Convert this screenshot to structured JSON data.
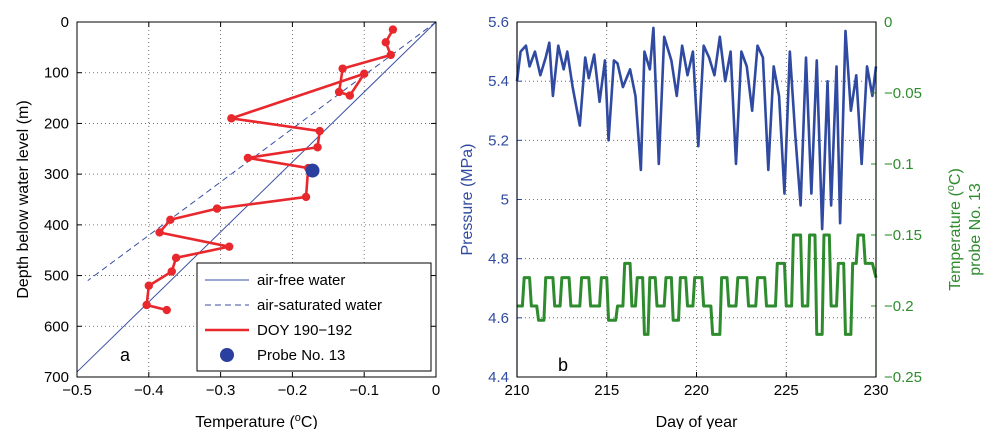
{
  "chart_data": [
    {
      "type": "line",
      "panel_label": "a",
      "xlabel": "Temperature (",
      "xlabel_sup": "o",
      "xlabel_unit": "C)",
      "ylabel": "Depth below water level (m)",
      "xlim": [
        -0.5,
        0
      ],
      "ylim": [
        0,
        700
      ],
      "y_reversed": true,
      "grid": true,
      "xticks": [
        -0.5,
        -0.4,
        -0.3,
        -0.2,
        -0.1,
        0
      ],
      "xtick_labels": [
        "−0.5",
        "−0.4",
        "−0.3",
        "−0.2",
        "−0.1",
        "0"
      ],
      "yticks": [
        0,
        100,
        200,
        300,
        400,
        500,
        600,
        700
      ],
      "ytick_labels": [
        "0",
        "100",
        "200",
        "300",
        "400",
        "500",
        "600",
        "700"
      ],
      "legend_position": "bottom-right",
      "series": [
        {
          "name": "air-free water",
          "kind": "line",
          "style": "solid",
          "color": "#3a4fa3",
          "x": [
            0,
            -0.5
          ],
          "y": [
            0,
            690
          ]
        },
        {
          "name": "air-saturated water",
          "kind": "line",
          "style": "dashed",
          "color": "#3a4fa3",
          "x": [
            0,
            -0.485
          ],
          "y": [
            0,
            510
          ]
        },
        {
          "name": "DOY 190−192",
          "kind": "line-markers",
          "color": "#e8282d",
          "x": [
            -0.06,
            -0.07,
            -0.063,
            -0.13,
            -0.135,
            -0.12,
            -0.1,
            -0.285,
            -0.162,
            -0.165,
            -0.262,
            -0.178,
            -0.181,
            -0.305,
            -0.37,
            -0.385,
            -0.288,
            -0.362,
            -0.368,
            -0.4,
            -0.403,
            -0.375
          ],
          "y": [
            15,
            40,
            65,
            92,
            138,
            145,
            102,
            190,
            215,
            247,
            268,
            288,
            345,
            368,
            390,
            415,
            443,
            465,
            492,
            520,
            558,
            568
          ]
        },
        {
          "name": "Probe No. 13",
          "kind": "marker",
          "color": "#2b3f9e",
          "x": [
            -0.172
          ],
          "y": [
            293
          ]
        }
      ]
    },
    {
      "type": "line",
      "panel_label": "b",
      "xlabel": "Day of year",
      "ylabel": "Pressure (MPa)",
      "ylabel_right": "Temperature (",
      "ylabel_right_sup": "o",
      "ylabel_right_unit": "C)",
      "ylabel_right_line2": "probe No. 13",
      "xlim": [
        210,
        230
      ],
      "ylim": [
        4.4,
        5.6
      ],
      "ylim_right": [
        -0.25,
        0
      ],
      "grid": true,
      "xticks": [
        210,
        215,
        220,
        225,
        230
      ],
      "xtick_labels": [
        "210",
        "215",
        "220",
        "225",
        "230"
      ],
      "yticks": [
        4.4,
        4.6,
        4.8,
        5,
        5.2,
        5.4,
        5.6
      ],
      "ytick_labels": [
        "4.4",
        "4.6",
        "4.8",
        "5",
        "5.2",
        "5.4",
        "5.6"
      ],
      "yticks_right": [
        0,
        -0.05,
        -0.1,
        -0.15,
        -0.2,
        -0.25
      ],
      "ytick_labels_right": [
        "0",
        "−0.05",
        "−0.1",
        "−0.15",
        "−0.2",
        "−0.25"
      ],
      "series": [
        {
          "name": "Pressure",
          "axis": "left",
          "color": "#2f4aa0",
          "x": [
            210,
            210.2,
            210.5,
            210.7,
            211,
            211.3,
            211.6,
            211.8,
            212,
            212.3,
            212.6,
            212.8,
            213.1,
            213.5,
            213.8,
            214,
            214.3,
            214.6,
            214.9,
            215.1,
            215.4,
            215.6,
            215.9,
            216.3,
            216.6,
            216.9,
            217.1,
            217.4,
            217.6,
            217.9,
            218.2,
            218.6,
            218.9,
            219.2,
            219.5,
            219.8,
            220.1,
            220.4,
            220.7,
            221,
            221.3,
            221.6,
            221.9,
            222.2,
            222.5,
            222.8,
            223.1,
            223.4,
            223.7,
            224,
            224.3,
            224.6,
            224.9,
            225.2,
            225.5,
            225.8,
            226.1,
            226.4,
            226.7,
            227,
            227.3,
            227.5,
            227.8,
            228,
            228.3,
            228.6,
            228.9,
            229.2,
            229.5,
            229.8,
            230
          ],
          "y": [
            5.4,
            5.5,
            5.52,
            5.45,
            5.5,
            5.42,
            5.48,
            5.53,
            5.35,
            5.52,
            5.44,
            5.5,
            5.38,
            5.25,
            5.48,
            5.41,
            5.49,
            5.33,
            5.47,
            5.2,
            5.47,
            5.46,
            5.38,
            5.44,
            5.35,
            5.1,
            5.5,
            5.44,
            5.58,
            5.12,
            5.55,
            5.47,
            5.35,
            5.52,
            5.42,
            5.5,
            5.18,
            5.52,
            5.48,
            5.42,
            5.55,
            5.4,
            5.5,
            5.12,
            5.5,
            5.45,
            5.3,
            5.52,
            5.48,
            5.1,
            5.45,
            5.35,
            5.02,
            5.5,
            5.22,
            4.98,
            5.48,
            5.02,
            5.47,
            4.9,
            5.4,
            4.98,
            5.45,
            4.92,
            5.57,
            5.3,
            5.42,
            5.12,
            5.45,
            5.35,
            5.45
          ]
        },
        {
          "name": "Temperature probe No. 13",
          "axis": "right",
          "color": "#2e8b2e",
          "x": [
            210,
            210.3,
            210.4,
            210.7,
            210.8,
            211.1,
            211.2,
            211.5,
            211.6,
            212,
            212.1,
            212.4,
            212.5,
            212.9,
            213,
            213.5,
            213.6,
            214,
            214.1,
            214.6,
            214.7,
            215,
            215.1,
            215.5,
            215.6,
            215.9,
            216,
            216.3,
            216.4,
            216.6,
            216.7,
            217,
            217.1,
            217.3,
            217.4,
            217.7,
            217.8,
            218.2,
            218.3,
            218.6,
            218.7,
            219,
            219.1,
            219.4,
            219.5,
            219.8,
            219.9,
            220.3,
            220.4,
            220.8,
            220.9,
            221.3,
            221.4,
            221.7,
            221.8,
            222.2,
            222.3,
            222.8,
            222.9,
            223.3,
            223.4,
            223.8,
            223.9,
            224.4,
            224.5,
            224.9,
            225,
            225.3,
            225.4,
            225.8,
            225.9,
            226.2,
            226.3,
            226.6,
            226.7,
            227,
            227.1,
            227.4,
            227.5,
            227.8,
            227.9,
            228.2,
            228.3,
            228.6,
            228.7,
            228.9,
            229,
            229.3,
            229.4,
            229.8,
            230
          ],
          "y": [
            -0.2,
            -0.2,
            -0.18,
            -0.18,
            -0.2,
            -0.2,
            -0.21,
            -0.21,
            -0.18,
            -0.18,
            -0.2,
            -0.2,
            -0.18,
            -0.18,
            -0.2,
            -0.2,
            -0.18,
            -0.18,
            -0.2,
            -0.2,
            -0.18,
            -0.18,
            -0.21,
            -0.21,
            -0.2,
            -0.2,
            -0.17,
            -0.17,
            -0.2,
            -0.2,
            -0.18,
            -0.18,
            -0.22,
            -0.22,
            -0.18,
            -0.18,
            -0.2,
            -0.2,
            -0.18,
            -0.18,
            -0.21,
            -0.21,
            -0.18,
            -0.18,
            -0.2,
            -0.2,
            -0.18,
            -0.18,
            -0.2,
            -0.2,
            -0.22,
            -0.22,
            -0.18,
            -0.18,
            -0.2,
            -0.2,
            -0.18,
            -0.18,
            -0.2,
            -0.2,
            -0.18,
            -0.18,
            -0.2,
            -0.2,
            -0.17,
            -0.17,
            -0.2,
            -0.2,
            -0.15,
            -0.15,
            -0.2,
            -0.2,
            -0.15,
            -0.15,
            -0.22,
            -0.22,
            -0.15,
            -0.15,
            -0.2,
            -0.2,
            -0.17,
            -0.17,
            -0.22,
            -0.22,
            -0.17,
            -0.17,
            -0.15,
            -0.15,
            -0.17,
            -0.17,
            -0.18
          ]
        }
      ]
    }
  ],
  "colors": {
    "pressure": "#2f4aa0",
    "temperature_right": "#2e8b2e",
    "doy": "#e8282d",
    "probe": "#2b3f9e"
  }
}
